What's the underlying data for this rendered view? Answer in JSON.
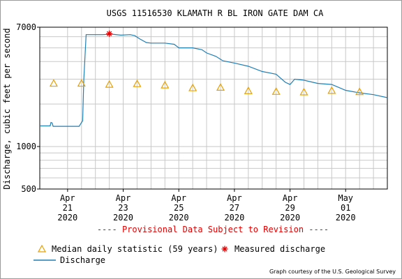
{
  "chart_data": {
    "type": "line",
    "title": "USGS 11516530 KLAMATH R BL IRON GATE DAM CA",
    "ylabel": "Discharge, cubic feet per second",
    "xlabel": "",
    "y_scale": "log",
    "ylim": [
      500,
      7000
    ],
    "xlim": [
      "2020-04-20 00:00",
      "2020-05-02 12:00"
    ],
    "y_ticks": [
      {
        "value": 500,
        "label": "500"
      },
      {
        "value": 1000,
        "label": "1000"
      },
      {
        "value": 7000,
        "label": "7000"
      }
    ],
    "x_ticks": [
      {
        "date": "2020-04-21",
        "month": "Apr",
        "day": "21",
        "year": "2020"
      },
      {
        "date": "2020-04-23",
        "month": "Apr",
        "day": "23",
        "year": "2020"
      },
      {
        "date": "2020-04-25",
        "month": "Apr",
        "day": "25",
        "year": "2020"
      },
      {
        "date": "2020-04-27",
        "month": "Apr",
        "day": "27",
        "year": "2020"
      },
      {
        "date": "2020-04-29",
        "month": "Apr",
        "day": "29",
        "year": "2020"
      },
      {
        "date": "2020-05-01",
        "month": "May",
        "day": "01",
        "year": "2020"
      }
    ],
    "grid": true,
    "series": [
      {
        "name": "Discharge",
        "kind": "line",
        "color": "#1f7fb5",
        "points": [
          [
            "2020-04-20 00:00",
            1400
          ],
          [
            "2020-04-20 09:00",
            1400
          ],
          [
            "2020-04-20 09:40",
            1480
          ],
          [
            "2020-04-20 10:40",
            1470
          ],
          [
            "2020-04-20 11:30",
            1390
          ],
          [
            "2020-04-20 19:00",
            1390
          ],
          [
            "2020-04-21 00:00",
            1390
          ],
          [
            "2020-04-21 10:00",
            1390
          ],
          [
            "2020-04-21 12:00",
            1480
          ],
          [
            "2020-04-21 13:00",
            1520
          ],
          [
            "2020-04-21 14:00",
            3000
          ],
          [
            "2020-04-21 16:00",
            6200
          ],
          [
            "2020-04-22 06:00",
            6200
          ],
          [
            "2020-04-22 14:00",
            6250
          ],
          [
            "2020-04-22 22:00",
            6150
          ],
          [
            "2020-04-23 06:00",
            6200
          ],
          [
            "2020-04-23 10:00",
            6100
          ],
          [
            "2020-04-23 14:00",
            5800
          ],
          [
            "2020-04-23 20:00",
            5450
          ],
          [
            "2020-04-24 00:00",
            5400
          ],
          [
            "2020-04-24 12:00",
            5400
          ],
          [
            "2020-04-24 20:00",
            5300
          ],
          [
            "2020-04-25 00:00",
            5000
          ],
          [
            "2020-04-25 12:00",
            5000
          ],
          [
            "2020-04-25 20:00",
            4850
          ],
          [
            "2020-04-26 00:00",
            4600
          ],
          [
            "2020-04-26 08:00",
            4350
          ],
          [
            "2020-04-26 14:00",
            4050
          ],
          [
            "2020-04-27 00:00",
            3900
          ],
          [
            "2020-04-27 12:00",
            3700
          ],
          [
            "2020-04-28 00:00",
            3400
          ],
          [
            "2020-04-28 12:00",
            3250
          ],
          [
            "2020-04-28 20:00",
            2850
          ],
          [
            "2020-04-29 00:00",
            2750
          ],
          [
            "2020-04-29 04:00",
            3000
          ],
          [
            "2020-04-29 12:00",
            2950
          ],
          [
            "2020-04-30 00:00",
            2800
          ],
          [
            "2020-04-30 12:00",
            2750
          ],
          [
            "2020-05-01 00:00",
            2500
          ],
          [
            "2020-05-01 12:00",
            2400
          ],
          [
            "2020-05-02 00:00",
            2330
          ],
          [
            "2020-05-02 12:00",
            2220
          ]
        ]
      },
      {
        "name": "Median daily statistic (59 years)",
        "kind": "markers",
        "marker": "triangle",
        "color": "#e8a000",
        "points": [
          [
            "2020-04-20 12:00",
            2800
          ],
          [
            "2020-04-21 12:00",
            2800
          ],
          [
            "2020-04-22 12:00",
            2750
          ],
          [
            "2020-04-23 12:00",
            2780
          ],
          [
            "2020-04-24 12:00",
            2720
          ],
          [
            "2020-04-25 12:00",
            2600
          ],
          [
            "2020-04-26 12:00",
            2620
          ],
          [
            "2020-04-27 12:00",
            2480
          ],
          [
            "2020-04-28 12:00",
            2450
          ],
          [
            "2020-04-29 12:00",
            2430
          ],
          [
            "2020-04-30 12:00",
            2490
          ],
          [
            "2020-05-01 12:00",
            2440
          ]
        ]
      },
      {
        "name": "Measured discharge",
        "kind": "markers",
        "marker": "asterisk",
        "color": "#e00000",
        "points": [
          [
            "2020-04-22 12:00",
            6300
          ]
        ]
      }
    ],
    "notice": "---- Provisional Data Subject to Revision ----",
    "legend": [
      {
        "symbol": "triangle",
        "label": "Median daily statistic (59 years)",
        "color": "#e8a000"
      },
      {
        "symbol": "asterisk",
        "label": "Measured discharge",
        "color": "#e00000"
      },
      {
        "symbol": "line",
        "label": "Discharge",
        "color": "#1f7fb5"
      }
    ],
    "credit": "Graph courtesy of the U.S. Geological Survey"
  }
}
